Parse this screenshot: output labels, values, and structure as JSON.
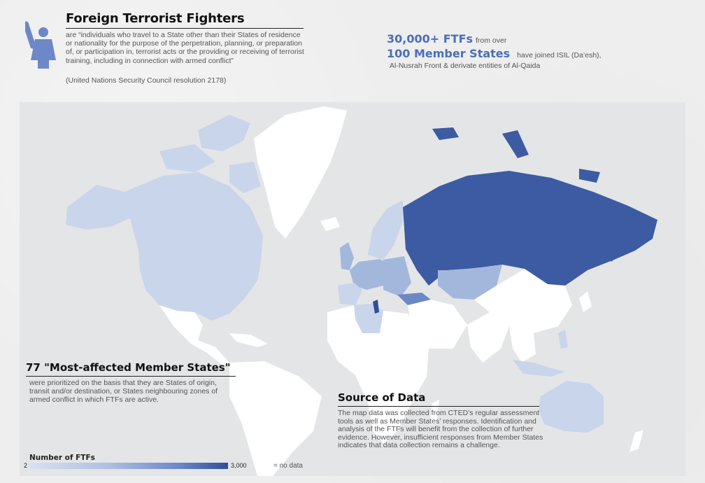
{
  "header": {
    "title": "Foreign Terrorist Fighters",
    "definition": "are “individuals who travel to a State other than their States of residence or nationality for the purpose of the perpetration, planning, or preparation of, or participation in, terrorist acts or the providing or receiving of terrorist training, including in connection with armed conflict”",
    "source_note": "(United Nations Security Council resolution 2178)"
  },
  "stats": {
    "ftf_count": "30,000+ FTFs",
    "from_over": "from over",
    "member_states": "100 Member States",
    "joined": "have joined ISIL (Da’esh),",
    "groups": "Al-Nusrah Front & derivate entities of Al-Qaida"
  },
  "most_affected": {
    "title": "77 \"Most-affected Member States\"",
    "body": "were prioritized on the basis that they are States of origin, transit and/or destination, or States neighbouring zones of armed conflict in which FTFs are active."
  },
  "source_of_data": {
    "title": "Source of Data",
    "body": "The map data was collected from CTED’s regular assessment tools as well as Member States’ responses. Identification and analysis of the FTFs will benefit from the collection of further evidence. However, insufficient responses from Member States indicates that data collection remains a challenge."
  },
  "legend": {
    "title": "Number of FTFs",
    "min": "2",
    "max": "3,000",
    "no_data": "= no data"
  },
  "colors": {
    "no_data": "#ffffff",
    "low": "#c9d5ea",
    "medium": "#a3b7dd",
    "high": "#3c5ba2",
    "map_background": "#e4e5e7",
    "accent": "#4a6fb6"
  },
  "icons": [
    "fighter-with-launcher-icon"
  ]
}
